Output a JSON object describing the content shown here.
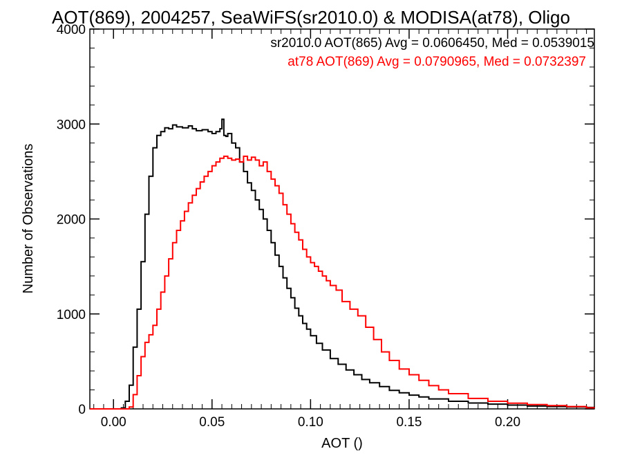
{
  "chart_data": {
    "type": "histogram",
    "title": "AOT(869), 2004257, SeaWiFS(sr2010.0) & MODISA(at78), Oligo",
    "xlabel": "AOT ()",
    "ylabel": "Number of Observations",
    "xlim": [
      -0.012,
      0.244
    ],
    "ylim": [
      0,
      4000
    ],
    "x_ticks": [
      0.0,
      0.05,
      0.1,
      0.15,
      0.2
    ],
    "x_tick_labels": [
      "0.00",
      "0.05",
      "0.10",
      "0.15",
      "0.20"
    ],
    "y_ticks": [
      0,
      1000,
      2000,
      3000,
      4000
    ],
    "y_tick_labels": [
      "0",
      "1000",
      "2000",
      "3000",
      "4000"
    ],
    "grid": false,
    "legend_placement": "top-right",
    "series": [
      {
        "name": "sr2010.0 AOT(865) Avg = 0.0606450, Med = 0.0539015",
        "color": "#000000",
        "x": [
          -0.012,
          -0.005,
          0.0,
          0.004,
          0.006,
          0.008,
          0.01,
          0.012,
          0.014,
          0.016,
          0.018,
          0.02,
          0.022,
          0.024,
          0.026,
          0.028,
          0.03,
          0.032,
          0.035,
          0.038,
          0.04,
          0.042,
          0.045,
          0.048,
          0.05,
          0.052,
          0.054,
          0.055,
          0.056,
          0.057,
          0.058,
          0.06,
          0.062,
          0.064,
          0.066,
          0.068,
          0.07,
          0.072,
          0.074,
          0.076,
          0.078,
          0.08,
          0.082,
          0.084,
          0.086,
          0.088,
          0.09,
          0.092,
          0.094,
          0.096,
          0.098,
          0.1,
          0.103,
          0.106,
          0.11,
          0.114,
          0.118,
          0.122,
          0.126,
          0.13,
          0.135,
          0.14,
          0.145,
          0.15,
          0.155,
          0.16,
          0.17,
          0.18,
          0.19,
          0.2,
          0.21,
          0.22,
          0.23,
          0.24,
          0.244
        ],
        "values": [
          0,
          0,
          0,
          10,
          80,
          250,
          650,
          1050,
          1550,
          2050,
          2450,
          2750,
          2880,
          2920,
          2960,
          2950,
          2990,
          2970,
          2960,
          2980,
          2950,
          2930,
          2940,
          2920,
          2900,
          2920,
          2950,
          3050,
          2880,
          2870,
          2900,
          2800,
          2750,
          2600,
          2500,
          2380,
          2300,
          2200,
          2100,
          2000,
          1880,
          1750,
          1620,
          1500,
          1380,
          1270,
          1170,
          1060,
          980,
          900,
          840,
          770,
          690,
          620,
          530,
          470,
          410,
          360,
          310,
          275,
          235,
          195,
          170,
          145,
          125,
          105,
          80,
          62,
          50,
          40,
          30,
          25,
          20,
          15,
          12
        ]
      },
      {
        "name": "at78 AOT(869) Avg = 0.0790965, Med = 0.0732397",
        "color": "#ff0000",
        "x": [
          -0.012,
          -0.005,
          0.0,
          0.006,
          0.008,
          0.01,
          0.012,
          0.014,
          0.016,
          0.018,
          0.02,
          0.022,
          0.024,
          0.026,
          0.028,
          0.03,
          0.032,
          0.034,
          0.036,
          0.038,
          0.04,
          0.042,
          0.044,
          0.046,
          0.048,
          0.05,
          0.052,
          0.054,
          0.056,
          0.058,
          0.06,
          0.062,
          0.064,
          0.066,
          0.068,
          0.07,
          0.072,
          0.074,
          0.076,
          0.078,
          0.08,
          0.082,
          0.084,
          0.086,
          0.088,
          0.09,
          0.092,
          0.094,
          0.096,
          0.098,
          0.1,
          0.102,
          0.104,
          0.106,
          0.108,
          0.11,
          0.113,
          0.116,
          0.12,
          0.124,
          0.128,
          0.132,
          0.136,
          0.14,
          0.145,
          0.15,
          0.155,
          0.16,
          0.165,
          0.17,
          0.18,
          0.19,
          0.2,
          0.21,
          0.22,
          0.23,
          0.24,
          0.244
        ],
        "values": [
          0,
          0,
          0,
          0,
          20,
          150,
          350,
          550,
          700,
          780,
          880,
          1050,
          1230,
          1400,
          1580,
          1750,
          1880,
          1980,
          2080,
          2170,
          2250,
          2320,
          2390,
          2450,
          2500,
          2560,
          2600,
          2640,
          2660,
          2640,
          2620,
          2630,
          2600,
          2660,
          2620,
          2650,
          2620,
          2560,
          2600,
          2500,
          2420,
          2350,
          2270,
          2150,
          2050,
          1950,
          1860,
          1780,
          1680,
          1600,
          1540,
          1500,
          1450,
          1400,
          1350,
          1300,
          1250,
          1130,
          1050,
          980,
          860,
          730,
          600,
          510,
          420,
          360,
          300,
          245,
          200,
          160,
          110,
          80,
          60,
          45,
          35,
          25,
          12,
          10
        ]
      }
    ]
  }
}
